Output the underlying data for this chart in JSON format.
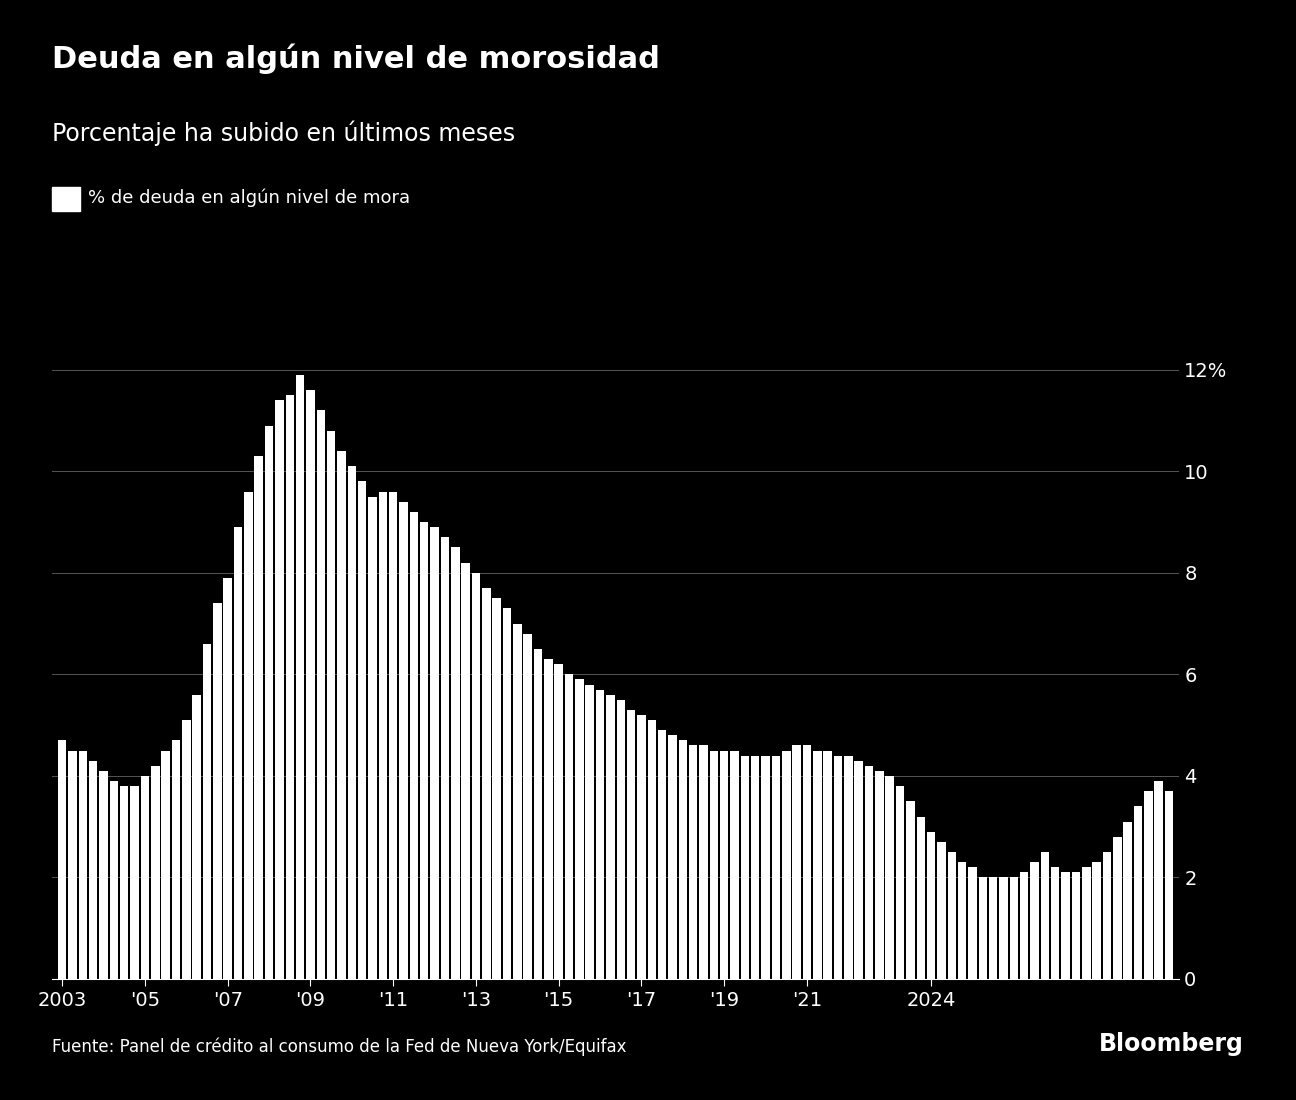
{
  "title": "Deuda en algún nivel de morosidad",
  "subtitle": "Porcentaje ha subido en últimos meses",
  "legend_label": "% de deuda en algún nivel de mora",
  "source": "Fuente: Panel de crédito al consumo de la Fed de Nueva York/Equifax",
  "bloomberg": "Bloomberg",
  "background_color": "#000000",
  "bar_color": "#ffffff",
  "text_color": "#ffffff",
  "grid_color": "#555555",
  "ylim": [
    0,
    13
  ],
  "yticks": [
    0,
    2,
    4,
    6,
    8,
    10,
    12
  ],
  "ytick_labels": [
    "0",
    "2",
    "4",
    "6",
    "8",
    "10",
    "12%"
  ],
  "xtick_labels": [
    "2003",
    "'05",
    "'07",
    "'09",
    "'11",
    "'13",
    "'15",
    "'17",
    "'19",
    "'21",
    "2024"
  ],
  "xtick_years": [
    2003,
    2005,
    2007,
    2009,
    2011,
    2013,
    2015,
    2017,
    2019,
    2021,
    2024
  ],
  "start_year": 2003,
  "values": [
    4.7,
    4.5,
    4.5,
    4.3,
    4.1,
    3.9,
    3.8,
    3.8,
    4.0,
    4.2,
    4.5,
    4.7,
    5.1,
    5.6,
    6.6,
    7.4,
    7.9,
    8.9,
    9.6,
    10.3,
    10.9,
    11.4,
    11.5,
    11.9,
    11.6,
    11.2,
    10.8,
    10.4,
    10.1,
    9.8,
    9.5,
    9.6,
    9.6,
    9.4,
    9.2,
    9.0,
    8.9,
    8.7,
    8.5,
    8.2,
    8.0,
    7.7,
    7.5,
    7.3,
    7.0,
    6.8,
    6.5,
    6.3,
    6.2,
    6.0,
    5.9,
    5.8,
    5.7,
    5.6,
    5.5,
    5.3,
    5.2,
    5.1,
    4.9,
    4.8,
    4.7,
    4.6,
    4.6,
    4.5,
    4.5,
    4.5,
    4.4,
    4.4,
    4.4,
    4.4,
    4.5,
    4.6,
    4.6,
    4.5,
    4.5,
    4.4,
    4.4,
    4.3,
    4.2,
    4.1,
    4.0,
    3.8,
    3.5,
    3.2,
    2.9,
    2.7,
    2.5,
    2.3,
    2.2,
    2.0,
    2.0,
    2.0,
    2.0,
    2.1,
    2.3,
    2.5,
    2.2,
    2.1,
    2.1,
    2.2,
    2.3,
    2.5,
    2.8,
    3.1,
    3.4,
    3.7,
    3.9,
    3.7
  ]
}
